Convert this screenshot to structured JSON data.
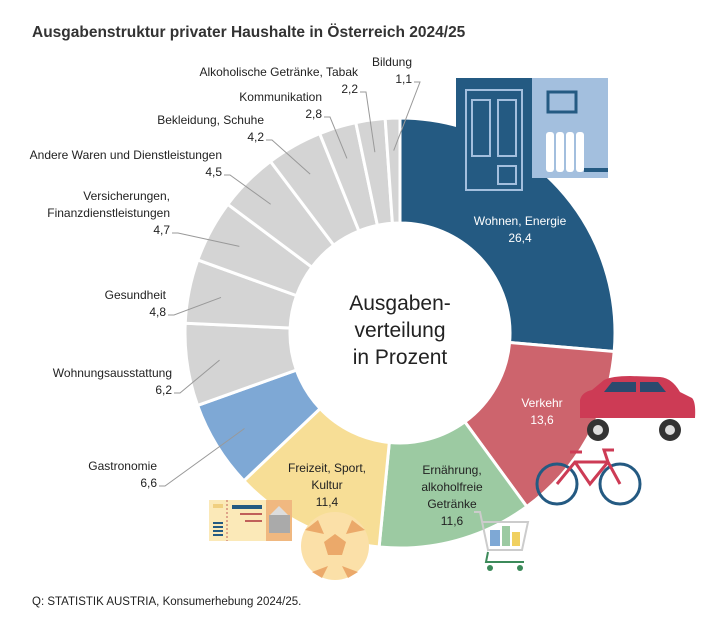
{
  "title": "Ausgabenstruktur privater Haushalte in Österreich 2024/25",
  "source": "Q: STATISTIK AUSTRIA, Konsumerhebung 2024/25.",
  "center_label": [
    "Ausgaben-",
    "verteilung",
    "in Prozent"
  ],
  "chart_data": {
    "type": "pie",
    "variant": "donut",
    "title": "Ausgabenstruktur privater Haushalte in Österreich 2024/25",
    "unit": "Prozent",
    "categories": [
      "Wohnen, Energie",
      "Verkehr",
      "Ernährung, alkoholfreie Getränke",
      "Freizeit, Sport, Kultur",
      "Gastronomie",
      "Wohnungsausstattung",
      "Gesundheit",
      "Versicherungen, Finanzdienstleistungen",
      "Andere Waren und Dienstleistungen",
      "Bekleidung, Schuhe",
      "Kommunikation",
      "Alkoholische Getränke, Tabak",
      "Bildung"
    ],
    "values": [
      26.4,
      13.6,
      11.6,
      11.4,
      6.6,
      6.2,
      4.8,
      4.7,
      4.5,
      4.2,
      2.8,
      2.2,
      1.1
    ],
    "value_labels": [
      "26,4",
      "13,6",
      "11,6",
      "11,4",
      "6,6",
      "6,2",
      "4,8",
      "4,7",
      "4,5",
      "4,2",
      "2,8",
      "2,2",
      "1,1"
    ],
    "label_lines": [
      [
        "Wohnen, Energie"
      ],
      [
        "Verkehr"
      ],
      [
        "Ernährung,",
        "alkoholfreie",
        "Getränke"
      ],
      [
        "Freizeit, Sport,",
        "Kultur"
      ],
      [
        "Gastronomie"
      ],
      [
        "Wohnungsausstattung"
      ],
      [
        "Gesundheit"
      ],
      [
        "Versicherungen,",
        "Finanzdienstleistungen"
      ],
      [
        "Andere Waren und Dienstleistungen"
      ],
      [
        "Bekleidung, Schuhe"
      ],
      [
        "Kommunikation"
      ],
      [
        "Alkoholische Getränke, Tabak"
      ],
      [
        "Bildung"
      ]
    ],
    "colors": [
      "#245a82",
      "#cd646d",
      "#9ccaa2",
      "#f7de96",
      "#7ea8d5",
      "#d4d4d4",
      "#d4d4d4",
      "#d4d4d4",
      "#d4d4d4",
      "#d4d4d4",
      "#d4d4d4",
      "#d4d4d4",
      "#d4d4d4"
    ],
    "text_colors": [
      "#ffffff",
      "#ffffff",
      "#222222",
      "#222222"
    ]
  }
}
